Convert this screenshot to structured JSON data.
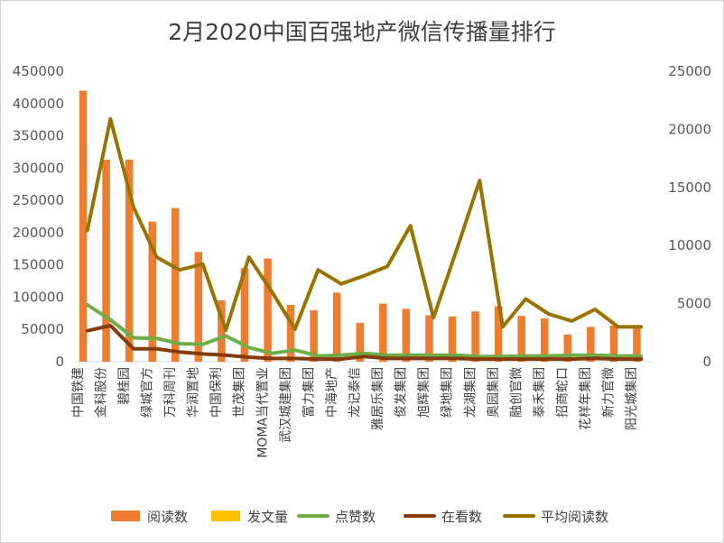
{
  "chart_data": {
    "type": "bar",
    "title": "2月2020中国百强地产微信传播量排行",
    "categories": [
      "中国铁建",
      "金科股份",
      "碧桂园",
      "绿城官方",
      "万科周刊",
      "华润置地",
      "中国保利",
      "世茂集团",
      "MOMA当代置业",
      "武汉城建集团",
      "富力集团",
      "中海地产",
      "龙记泰信",
      "雅居乐集团",
      "俊发集团",
      "旭辉集团",
      "绿地集团",
      "龙湖集团",
      "奥园集团",
      "融创官微",
      "泰禾集团",
      "招商蛇口",
      "花样年集团",
      "新力官微",
      "阳光城集团"
    ],
    "y_left": {
      "min": 0,
      "max": 450000,
      "ticks": [
        "0",
        "50000",
        "100000",
        "150000",
        "200000",
        "250000",
        "300000",
        "350000",
        "400000",
        "450000"
      ]
    },
    "y_right": {
      "min": 0,
      "max": 25000,
      "ticks": [
        "0",
        "5000",
        "10000",
        "15000",
        "20000",
        "25000"
      ]
    },
    "series": [
      {
        "name": "阅读数",
        "kind": "bar",
        "axis": "left",
        "color": "#ED7D31",
        "values": [
          420000,
          313000,
          313000,
          217000,
          238000,
          170000,
          95000,
          145000,
          160000,
          88000,
          80000,
          107000,
          60000,
          90000,
          82000,
          72000,
          70000,
          78000,
          86000,
          71000,
          67000,
          42000,
          54000,
          56000,
          52000
        ]
      },
      {
        "name": "发文量",
        "kind": "bar",
        "axis": "left",
        "color": "#FFC000",
        "values": [
          0,
          0,
          0,
          0,
          0,
          0,
          0,
          0,
          0,
          0,
          0,
          0,
          0,
          0,
          0,
          0,
          0,
          0,
          0,
          0,
          0,
          0,
          0,
          0,
          0
        ]
      },
      {
        "name": "点赞数",
        "kind": "line",
        "axis": "left",
        "color": "#70AD47",
        "values": [
          88000,
          65000,
          37000,
          36000,
          28000,
          27000,
          40000,
          22000,
          13000,
          18000,
          9000,
          10000,
          13000,
          10000,
          10000,
          10000,
          10000,
          8000,
          8000,
          9000,
          9000,
          10000,
          10000,
          9000,
          9000
        ]
      },
      {
        "name": "在看数",
        "kind": "line",
        "axis": "left",
        "color": "#843C0C",
        "values": [
          48000,
          56000,
          20000,
          20000,
          15000,
          12000,
          10000,
          7000,
          5000,
          5000,
          4000,
          4000,
          8000,
          5000,
          5000,
          5000,
          5000,
          4000,
          4000,
          4000,
          4000,
          4000,
          5000,
          4000,
          4000
        ]
      },
      {
        "name": "平均阅读数",
        "kind": "line",
        "axis": "right",
        "color": "#997300",
        "values": [
          11300,
          20900,
          13300,
          9000,
          7900,
          8400,
          2700,
          9000,
          6000,
          2800,
          7900,
          6700,
          7400,
          8200,
          11700,
          3800,
          9600,
          15600,
          3000,
          5400,
          4100,
          3500,
          4500,
          3000,
          3000
        ]
      }
    ],
    "legend_position": "bottom",
    "grid": false
  }
}
